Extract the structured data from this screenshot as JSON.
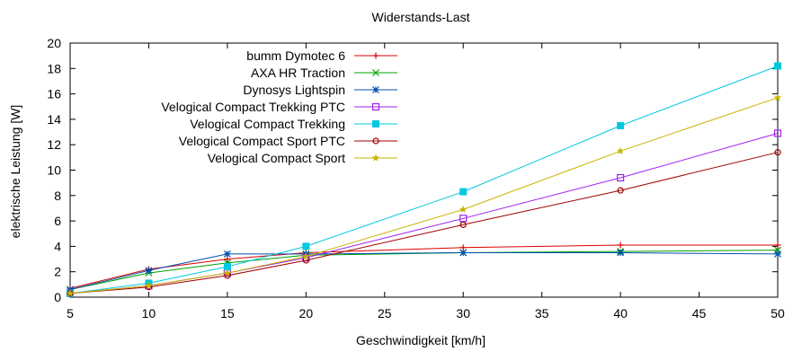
{
  "chart_data": {
    "type": "line",
    "title": "Widerstands-Last",
    "xlabel": "Geschwindigkeit [km/h]",
    "ylabel": "elektrische Leistung [W]",
    "xlim": [
      5,
      50
    ],
    "ylim": [
      0,
      20
    ],
    "xticks": [
      5,
      10,
      15,
      20,
      25,
      30,
      35,
      40,
      45,
      50
    ],
    "yticks": [
      0,
      2,
      4,
      6,
      8,
      10,
      12,
      14,
      16,
      18,
      20
    ],
    "grid": false,
    "legend_position": "top-center",
    "x": [
      5,
      10,
      15,
      20,
      30,
      40,
      50
    ],
    "series": [
      {
        "name": "bumm Dymotec 6",
        "color": "#dd0000",
        "marker": "plus",
        "values": [
          0.7,
          2.2,
          3.0,
          3.5,
          3.9,
          4.1,
          4.1
        ]
      },
      {
        "name": "AXA HR Traction",
        "color": "#00a000",
        "marker": "cross",
        "values": [
          0.6,
          1.9,
          2.7,
          3.3,
          3.5,
          3.6,
          3.7
        ]
      },
      {
        "name": "Dynosys Lightspin",
        "color": "#0050b0",
        "marker": "star",
        "values": [
          0.6,
          2.1,
          3.4,
          3.4,
          3.5,
          3.5,
          3.4
        ]
      },
      {
        "name": "Velogical Compact Trekking PTC",
        "color": "#a020f0",
        "marker": "open-square",
        "values": [
          0.3,
          0.9,
          1.9,
          3.1,
          6.2,
          9.4,
          12.9
        ]
      },
      {
        "name": "Velogical Compact Trekking",
        "color": "#00c8e0",
        "marker": "filled-square",
        "values": [
          0.3,
          1.1,
          2.4,
          4.0,
          8.3,
          13.5,
          18.2
        ]
      },
      {
        "name": "Velogical Compact Sport PTC",
        "color": "#a00000",
        "marker": "open-circle",
        "values": [
          0.3,
          0.8,
          1.7,
          2.9,
          5.7,
          8.4,
          11.4
        ]
      },
      {
        "name": "Velogical Compact Sport",
        "color": "#c8b400",
        "marker": "filled-star",
        "values": [
          0.3,
          0.9,
          1.9,
          3.2,
          6.9,
          11.5,
          15.7
        ]
      }
    ]
  }
}
